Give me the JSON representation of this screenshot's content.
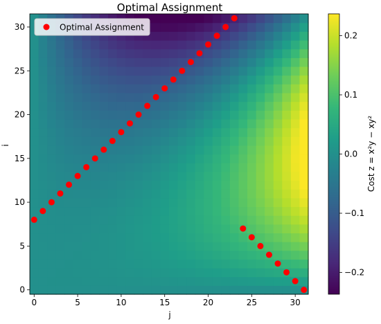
{
  "chart_data": {
    "type": "heatmap",
    "title": "Optimal Assignment",
    "xlabel": "j",
    "ylabel": "i",
    "x_range": [
      -0.5,
      31.5
    ],
    "y_range": [
      -0.5,
      31.5
    ],
    "x_ticks": [
      0,
      5,
      10,
      15,
      20,
      25,
      30
    ],
    "y_ticks": [
      0,
      5,
      10,
      15,
      20,
      25,
      30
    ],
    "grid": false,
    "heatmap": {
      "formula": "z = x²y − xy²",
      "x_var": "j",
      "y_var": "i",
      "domain": [
        0,
        1
      ],
      "n": 32,
      "colormap": "viridis"
    },
    "colorbar": {
      "label": "Cost z = x²y − xy²",
      "range": [
        -0.2368,
        0.2368
      ],
      "ticks": [
        -0.2,
        -0.1,
        0.0,
        0.1,
        0.2
      ],
      "tick_labels": [
        "−0.2",
        "−0.1",
        "0.0",
        "0.1",
        "0.2"
      ]
    },
    "legend": {
      "placement": "top-left",
      "entries": [
        "Optimal Assignment"
      ]
    },
    "series": [
      {
        "name": "Optimal Assignment",
        "color": "#ff0000",
        "marker": "circle",
        "points": [
          {
            "j": 0,
            "i": 8
          },
          {
            "j": 1,
            "i": 9
          },
          {
            "j": 2,
            "i": 10
          },
          {
            "j": 3,
            "i": 11
          },
          {
            "j": 4,
            "i": 12
          },
          {
            "j": 5,
            "i": 13
          },
          {
            "j": 6,
            "i": 14
          },
          {
            "j": 7,
            "i": 15
          },
          {
            "j": 8,
            "i": 16
          },
          {
            "j": 9,
            "i": 17
          },
          {
            "j": 10,
            "i": 18
          },
          {
            "j": 11,
            "i": 19
          },
          {
            "j": 12,
            "i": 20
          },
          {
            "j": 13,
            "i": 21
          },
          {
            "j": 14,
            "i": 22
          },
          {
            "j": 15,
            "i": 23
          },
          {
            "j": 16,
            "i": 24
          },
          {
            "j": 17,
            "i": 25
          },
          {
            "j": 18,
            "i": 26
          },
          {
            "j": 19,
            "i": 27
          },
          {
            "j": 20,
            "i": 28
          },
          {
            "j": 21,
            "i": 29
          },
          {
            "j": 22,
            "i": 30
          },
          {
            "j": 23,
            "i": 31
          },
          {
            "j": 24,
            "i": 7
          },
          {
            "j": 25,
            "i": 6
          },
          {
            "j": 26,
            "i": 5
          },
          {
            "j": 27,
            "i": 4
          },
          {
            "j": 28,
            "i": 3
          },
          {
            "j": 29,
            "i": 2
          },
          {
            "j": 30,
            "i": 1
          },
          {
            "j": 31,
            "i": 0
          }
        ]
      }
    ]
  }
}
